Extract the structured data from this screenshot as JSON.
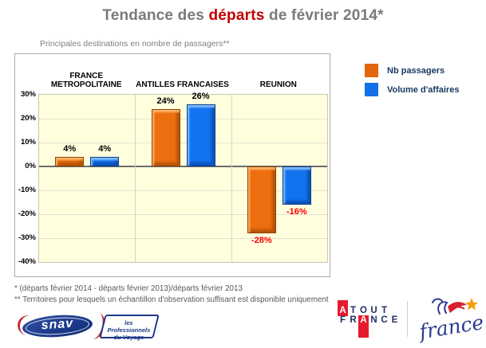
{
  "title": {
    "prefix": "Tendance des ",
    "highlight": "départs",
    "suffix": " de février 2014*"
  },
  "subtitle": "Principales destinations en nombre de passagers**",
  "chart_data": {
    "type": "bar",
    "title": "Tendance des départs de février 2014*",
    "subtitle": "Principales destinations en nombre de passagers**",
    "categories": [
      "FRANCE METROPOLITAINE",
      "ANTILLES FRANCAISES",
      "REUNION"
    ],
    "series": [
      {
        "name": "Nb passagers",
        "color": "#E2660C",
        "values": [
          4,
          24,
          -28
        ],
        "labels": [
          "4%",
          "24%",
          "-28%"
        ]
      },
      {
        "name": "Volume d'affaires",
        "color": "#1271E6",
        "values": [
          4,
          26,
          -16
        ],
        "labels": [
          "4%",
          "26%",
          "-16%"
        ]
      }
    ],
    "ylim": [
      -40,
      30
    ],
    "ytick_step": 10,
    "ytick_suffix": "%",
    "grid": true,
    "legend_position": "right",
    "plot_bg": "#FFFFDE",
    "positive_label_color": "#000000",
    "negative_label_color": "#FF0000"
  },
  "footnotes": [
    "* (départs février 2014 - départs février 2013)/départs février 2013",
    "** Territoires pour lesquels un échantillon d'observation suffisant est disponible uniquement"
  ],
  "logos": {
    "snav": {
      "name": "snav",
      "tagline1": "les Professionnels",
      "tagline2": "du Voyage"
    },
    "atout_france": {
      "line1": "ATOUT",
      "line2": "FRANCE",
      "red_letter_index": [
        0,
        2
      ]
    },
    "france": {
      "script": "france"
    }
  }
}
